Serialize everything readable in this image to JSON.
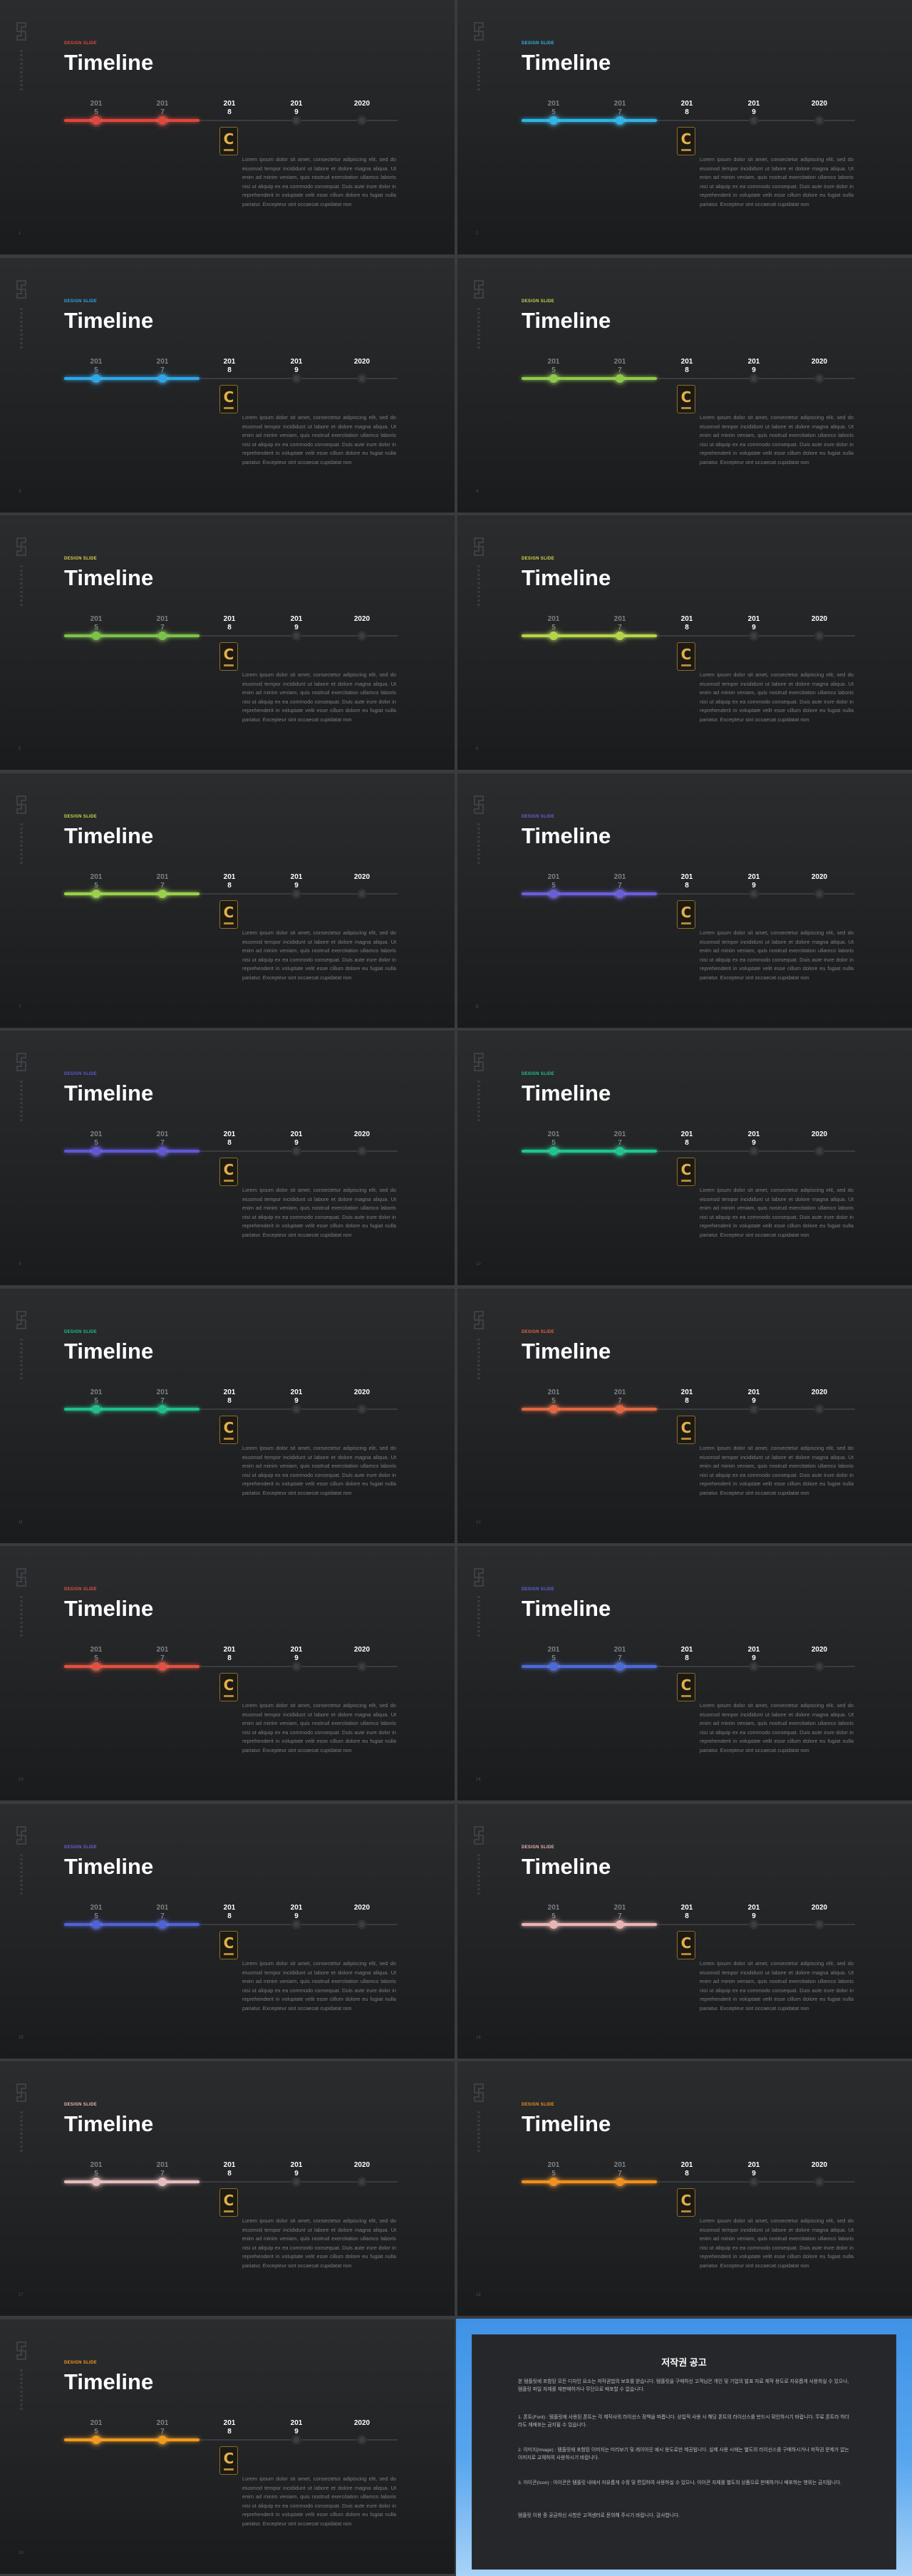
{
  "slides": [
    {
      "badge": "DESIGN SLIDE",
      "title": "Timeline",
      "accent": "#e0463c",
      "badge_color": "#e0463c",
      "years": [
        "201\n5",
        "201\n7",
        "201\n8",
        "201\n9",
        "2020"
      ],
      "page": "1"
    },
    {
      "badge": "DESIGN SLIDE",
      "title": "Timeline",
      "accent": "#2fb5e6",
      "badge_color": "#2fb5e6",
      "years": [
        "201\n5",
        "201\n7",
        "201\n8",
        "201\n9",
        "2020"
      ],
      "page": "2"
    },
    {
      "badge": "DESIGN SLIDE",
      "title": "Timeline",
      "accent": "#2fa6e6",
      "badge_color": "#2fa6e6",
      "years": [
        "201\n5",
        "201\n7",
        "201\n8",
        "201\n9",
        "2020"
      ],
      "page": "3"
    },
    {
      "badge": "DESIGN SLIDE",
      "title": "Timeline",
      "accent": "#8fc94a",
      "badge_color": "#c7d54a",
      "years": [
        "201\n5",
        "201\n7",
        "201\n8",
        "201\n9",
        "2020"
      ],
      "page": "4"
    },
    {
      "badge": "DESIGN SLIDE",
      "title": "Timeline",
      "accent": "#7cc24a",
      "badge_color": "#d8d24a",
      "years": [
        "201\n5",
        "201\n7",
        "201\n8",
        "201\n9",
        "2020"
      ],
      "page": "5"
    },
    {
      "badge": "DESIGN SLIDE",
      "title": "Timeline",
      "accent": "#b6d44a",
      "badge_color": "#d6d44a",
      "years": [
        "201\n5",
        "201\n7",
        "201\n8",
        "201\n9",
        "2020"
      ],
      "page": "6"
    },
    {
      "badge": "DESIGN SLIDE",
      "title": "Timeline",
      "accent": "#9ad14a",
      "badge_color": "#c9d84a",
      "years": [
        "201\n5",
        "201\n7",
        "201\n8",
        "201\n9",
        "2020"
      ],
      "page": "7"
    },
    {
      "badge": "DESIGN SLIDE",
      "title": "Timeline",
      "accent": "#6a5ed8",
      "badge_color": "#6a5ed8",
      "years": [
        "201\n5",
        "201\n7",
        "201\n8",
        "201\n9",
        "2020"
      ],
      "page": "8"
    },
    {
      "badge": "DESIGN SLIDE",
      "title": "Timeline",
      "accent": "#5f57d4",
      "badge_color": "#5f57d4",
      "years": [
        "201\n5",
        "201\n7",
        "201\n8",
        "201\n9",
        "2020"
      ],
      "page": "9"
    },
    {
      "badge": "DESIGN SLIDE",
      "title": "Timeline",
      "accent": "#21c48f",
      "badge_color": "#21c48f",
      "years": [
        "201\n5",
        "201\n7",
        "201\n8",
        "201\n9",
        "2020"
      ],
      "page": "10"
    },
    {
      "badge": "DESIGN SLIDE",
      "title": "Timeline",
      "accent": "#1fbf8a",
      "badge_color": "#1fbf8a",
      "years": [
        "201\n5",
        "201\n7",
        "201\n8",
        "201\n9",
        "2020"
      ],
      "page": "11"
    },
    {
      "badge": "DESIGN SLIDE",
      "title": "Timeline",
      "accent": "#e2673f",
      "badge_color": "#e2673f",
      "years": [
        "201\n5",
        "201\n7",
        "201\n8",
        "201\n9",
        "2020"
      ],
      "page": "12"
    },
    {
      "badge": "DESIGN SLIDE",
      "title": "Timeline",
      "accent": "#e0523f",
      "badge_color": "#e0523f",
      "years": [
        "201\n5",
        "201\n7",
        "201\n8",
        "201\n9",
        "2020"
      ],
      "page": "13"
    },
    {
      "badge": "DESIGN SLIDE",
      "title": "Timeline",
      "accent": "#4b6bd6",
      "badge_color": "#5a64d8",
      "years": [
        "201\n5",
        "201\n7",
        "201\n8",
        "201\n9",
        "2020"
      ],
      "page": "14"
    },
    {
      "badge": "DESIGN SLIDE",
      "title": "Timeline",
      "accent": "#4f63d4",
      "badge_color": "#6a5ed8",
      "years": [
        "201\n5",
        "201\n7",
        "201\n8",
        "201\n9",
        "2020"
      ],
      "page": "15"
    },
    {
      "badge": "DESIGN SLIDE",
      "title": "Timeline",
      "accent": "#e8b5b5",
      "badge_color": "#e6b3b3",
      "years": [
        "201\n5",
        "201\n7",
        "201\n8",
        "201\n9",
        "2020"
      ],
      "page": "16"
    },
    {
      "badge": "DESIGN SLIDE",
      "title": "Timeline",
      "accent": "#e6bcbc",
      "badge_color": "#e8b8b8",
      "years": [
        "201\n5",
        "201\n7",
        "201\n8",
        "201\n9",
        "2020"
      ],
      "page": "17"
    },
    {
      "badge": "DESIGN SLIDE",
      "title": "Timeline",
      "accent": "#f0901e",
      "badge_color": "#f0901e",
      "years": [
        "201\n5",
        "201\n7",
        "201\n8",
        "201\n9",
        "2020"
      ],
      "page": "18"
    },
    {
      "badge": "DESIGN SLIDE",
      "title": "Timeline",
      "accent": "#f09a1e",
      "badge_color": "#f09a1e",
      "years": [
        "201\n5",
        "201\n7",
        "201\n8",
        "201\n9",
        "2020"
      ],
      "page": "19"
    }
  ],
  "body_text": "Lorem ipsum dolor sit amet, consectetur adipiscing elit, sed do eiusmod tempor incididunt ut labore et dolore magna aliqua. Ut enim ad minim veniam, quis nostrud exercitation ullamco laboris nisi ut aliquip ex ea commodo consequat. Duis aute irure dolor in reprehenderit in voluptate velit esse cillum dolore eu fugiat nulla pariatur. Excepteur sint occaecat cupidatat non",
  "current_marker": "C",
  "notice": {
    "title": "저작권 공고",
    "paragraphs": [
      "본 템플릿에 포함된 모든 디자인 요소는 저작권법의 보호를 받습니다. 템플릿을 구매하신 고객님은 개인 및 기업의 발표 자료 제작 용도로 자유롭게 사용하실 수 있으나, 템플릿 파일 자체를 재판매하거나 무단으로 배포할 수 없습니다.",
      "1. 폰트(Font) : 템플릿에 사용된 폰트는 각 제작사의 라이선스 정책을 따릅니다. 상업적 사용 시 해당 폰트의 라이선스를 반드시 확인하시기 바랍니다. 무료 폰트라 하더라도 재배포는 금지될 수 있습니다.",
      "2. 이미지(Image) : 템플릿에 포함된 이미지는 미리보기 및 레이아웃 예시 용도로만 제공됩니다. 실제 사용 시에는 별도의 라이선스를 구매하시거나 저작권 문제가 없는 이미지로 교체하여 사용하시기 바랍니다.",
      "3. 아이콘(Icon) : 아이콘은 템플릿 내에서 자유롭게 수정 및 편집하여 사용하실 수 있으나, 아이콘 자체를 별도의 상품으로 판매하거나 배포하는 행위는 금지됩니다.",
      "템플릿 이용 중 궁금하신 사항은 고객센터로 문의해 주시기 바랍니다. 감사합니다."
    ]
  }
}
